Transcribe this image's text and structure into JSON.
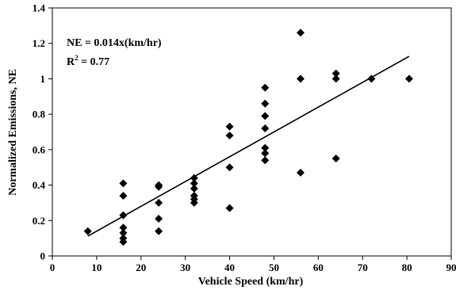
{
  "chart_data": {
    "type": "scatter",
    "xlabel": "Vehicle Speed (km/hr)",
    "ylabel": "Normalized Emissions, NE",
    "xlim": [
      0,
      90
    ],
    "ylim": [
      0,
      1.4
    ],
    "xticks": [
      "0",
      "10",
      "20",
      "30",
      "40",
      "50",
      "60",
      "70",
      "80",
      "90"
    ],
    "yticks": [
      "0",
      "0.2",
      "0.4",
      "0.6",
      "0.8",
      "1",
      "1.2",
      "1.4"
    ],
    "grid": false,
    "annotation": {
      "equation": "NE = 0.014x(km/hr)",
      "r2_prefix": "R",
      "r2_sup": "2",
      "r2_value": " = 0.77"
    },
    "trendline": {
      "slope": 0.014,
      "intercept": 0,
      "x_start": 8,
      "x_end": 80.5
    },
    "points": [
      [
        8,
        0.14
      ],
      [
        16,
        0.41
      ],
      [
        16,
        0.34
      ],
      [
        16,
        0.23
      ],
      [
        16,
        0.16
      ],
      [
        16,
        0.13
      ],
      [
        16,
        0.1
      ],
      [
        16,
        0.08
      ],
      [
        24,
        0.4
      ],
      [
        24,
        0.39
      ],
      [
        24,
        0.3
      ],
      [
        24,
        0.21
      ],
      [
        24,
        0.14
      ],
      [
        32,
        0.44
      ],
      [
        32,
        0.41
      ],
      [
        32,
        0.38
      ],
      [
        32,
        0.34
      ],
      [
        32,
        0.32
      ],
      [
        32,
        0.3
      ],
      [
        40,
        0.73
      ],
      [
        40,
        0.68
      ],
      [
        40,
        0.5
      ],
      [
        40,
        0.27
      ],
      [
        48,
        0.95
      ],
      [
        48,
        0.86
      ],
      [
        48,
        0.79
      ],
      [
        48,
        0.72
      ],
      [
        48,
        0.61
      ],
      [
        48,
        0.58
      ],
      [
        48,
        0.54
      ],
      [
        56,
        1.26
      ],
      [
        56,
        1.0
      ],
      [
        56,
        0.47
      ],
      [
        64,
        1.03
      ],
      [
        64,
        1.0
      ],
      [
        64,
        0.55
      ],
      [
        72,
        1.0
      ],
      [
        80.5,
        1.0
      ]
    ]
  }
}
